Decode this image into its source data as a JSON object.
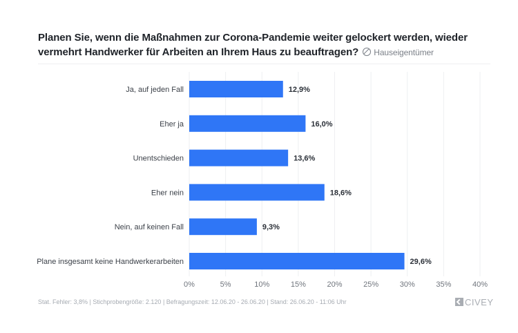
{
  "header": {
    "question": "Planen Sie, wenn die Maßnahmen zur Corona-Pandemie weiter gelockert werden, wieder vermehrt Handwerker für Arbeiten an Ihrem Haus zu beauftragen?",
    "audience": "Hauseigentümer",
    "audience_icon": "target-group-icon"
  },
  "chart_data": {
    "type": "bar",
    "orientation": "horizontal",
    "title": "Planen Sie, wenn die Maßnahmen zur Corona-Pandemie weiter gelockert werden, wieder vermehrt Handwerker für Arbeiten an Ihrem Haus zu beauftragen?",
    "categories": [
      "Ja, auf jeden Fall",
      "Eher ja",
      "Unentschieden",
      "Eher nein",
      "Nein, auf keinen Fall",
      "Plane insgesamt keine Handwerkerarbeiten"
    ],
    "values": [
      12.9,
      16.0,
      13.6,
      18.6,
      9.3,
      29.6
    ],
    "value_labels": [
      "12,9%",
      "16,0%",
      "13,6%",
      "18,6%",
      "9,3%",
      "29,6%"
    ],
    "xlabel": "",
    "ylabel": "",
    "xlim": [
      0,
      40
    ],
    "x_ticks": [
      0,
      5,
      10,
      15,
      20,
      25,
      30,
      35,
      40
    ],
    "x_tick_labels": [
      "0%",
      "5%",
      "10%",
      "15%",
      "20%",
      "25%",
      "30%",
      "35%",
      "40%"
    ],
    "grid": true,
    "bar_color": "#2f76f6"
  },
  "footer": {
    "text": "Stat. Fehler: 3,8% | Stichprobengröße: 2.120 | Befragungszeit: 12.06.20 - 26.06.20 | Stand: 26.06.20 - 11:06 Uhr",
    "logo": "CIVEY"
  }
}
